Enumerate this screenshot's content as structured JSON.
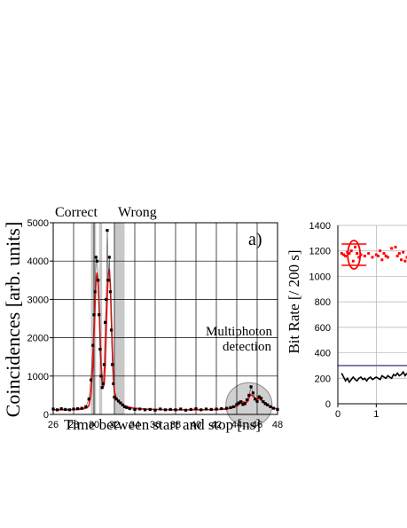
{
  "chart_data": [
    {
      "type": "line",
      "panel_label": "a)",
      "xlabel": "Time between start and stop [ns]",
      "ylabel": "Coincidences [arb. units]",
      "xlim": [
        26,
        48
      ],
      "ylim": [
        0,
        5000
      ],
      "x_ticks": [
        "26",
        "28",
        "30",
        "32",
        "34",
        "36",
        "38",
        "40",
        "42",
        "44",
        "46",
        "48"
      ],
      "y_ticks": [
        "0",
        "1000",
        "2000",
        "3000",
        "4000",
        "5000"
      ],
      "grid": true,
      "annotations": {
        "correct": "Correct",
        "wrong": "Wrong",
        "multiphoton_line1": "Multiphoton",
        "multiphoton_line2": "detection"
      },
      "shaded_regions": [
        [
          29.7,
          30.2
        ],
        [
          30.5,
          30.8
        ],
        [
          32.0,
          33.0
        ]
      ],
      "highlight_ellipse_center": [
        45.2,
        250
      ],
      "colors": {
        "points": "#000000",
        "fit": "#ff0000",
        "shade": "#c8c8c8",
        "ellipse": "#d0d0d0"
      },
      "series": [
        {
          "kind": "points",
          "x": [
            26.0,
            26.4,
            26.8,
            27.2,
            27.6,
            28.0,
            28.4,
            28.8,
            29.2,
            29.5,
            29.7,
            29.9,
            30.0,
            30.1,
            30.2,
            30.3,
            30.4,
            30.5,
            30.6,
            30.7,
            30.8,
            30.9,
            31.0,
            31.1,
            31.2,
            31.3,
            31.4,
            31.5,
            31.6,
            31.7,
            31.8,
            31.9,
            32.0,
            32.2,
            32.4,
            32.6,
            32.8,
            33.0,
            33.2,
            33.5,
            34.0,
            34.5,
            35.0,
            35.5,
            36.0,
            36.5,
            37.0,
            37.5,
            38.0,
            38.5,
            39.0,
            39.5,
            40.0,
            40.5,
            41.0,
            41.5,
            42.0,
            42.5,
            43.0,
            43.4,
            43.7,
            44.0,
            44.2,
            44.4,
            44.6,
            44.8,
            45.0,
            45.2,
            45.4,
            45.6,
            45.8,
            46.0,
            46.2,
            46.4,
            46.6,
            46.8,
            47.0,
            47.3,
            47.6,
            48.0
          ],
          "y": [
            140,
            120,
            150,
            130,
            120,
            140,
            150,
            160,
            200,
            400,
            900,
            1800,
            2600,
            3200,
            4100,
            4000,
            3500,
            2600,
            1700,
            1000,
            700,
            800,
            1300,
            2400,
            3000,
            4800,
            3500,
            4100,
            3200,
            2200,
            1300,
            800,
            450,
            400,
            350,
            300,
            250,
            200,
            180,
            150,
            130,
            140,
            120,
            130,
            110,
            140,
            120,
            130,
            120,
            140,
            110,
            130,
            150,
            120,
            140,
            130,
            140,
            150,
            160,
            180,
            200,
            260,
            300,
            330,
            260,
            280,
            380,
            500,
            720,
            560,
            400,
            340,
            460,
            420,
            330,
            280,
            250,
            200,
            160,
            130
          ]
        },
        {
          "kind": "fit",
          "x": [
            26.0,
            27.0,
            28.0,
            28.5,
            29.0,
            29.3,
            29.5,
            29.7,
            29.9,
            30.0,
            30.1,
            30.2,
            30.3,
            30.4,
            30.5,
            30.6,
            30.7,
            30.8,
            30.9,
            31.0,
            31.1,
            31.2,
            31.3,
            31.4,
            31.5,
            31.6,
            31.7,
            31.8,
            31.9,
            32.0,
            32.2,
            32.4,
            32.6,
            32.8,
            33.0,
            33.4,
            34.0,
            35.0,
            36.0,
            38.0,
            40.0,
            42.0,
            43.0,
            43.5,
            44.0,
            44.3,
            44.6,
            44.9,
            45.1,
            45.3,
            45.6,
            45.9,
            46.2,
            46.5,
            46.8,
            47.2,
            47.6,
            48.0
          ],
          "y": [
            120,
            120,
            125,
            130,
            145,
            170,
            230,
            520,
            1300,
            2100,
            2900,
            3500,
            3700,
            3450,
            2800,
            2000,
            1300,
            900,
            700,
            800,
            1300,
            2200,
            3100,
            3700,
            3800,
            3400,
            2600,
            1700,
            1000,
            600,
            400,
            330,
            290,
            260,
            230,
            190,
            160,
            140,
            130,
            120,
            120,
            125,
            140,
            170,
            220,
            280,
            330,
            300,
            350,
            520,
            480,
            400,
            420,
            340,
            300,
            230,
            170,
            140
          ]
        }
      ]
    },
    {
      "type": "scatter",
      "ylabel": "Bit Rate [/ 200 s]",
      "xlim": [
        0,
        1.8
      ],
      "ylim": [
        0,
        1400
      ],
      "x_ticks": [
        "0",
        "1"
      ],
      "y_ticks": [
        "0",
        "200",
        "400",
        "600",
        "800",
        "1000",
        "1200",
        "1400"
      ],
      "grid": true,
      "colors": {
        "points": "#ff0000",
        "line": "#000000",
        "reference": "#6060a0"
      },
      "reference_level": 300,
      "highlight_ellipse_center": [
        0.42,
        1170
      ],
      "series": [
        {
          "kind": "points",
          "x": [
            0.1,
            0.15,
            0.2,
            0.25,
            0.3,
            0.35,
            0.4,
            0.45,
            0.5,
            0.55,
            0.6,
            0.7,
            0.8,
            0.9,
            1.0,
            1.05,
            1.1,
            1.15,
            1.2,
            1.25,
            1.3,
            1.4,
            1.5,
            1.55,
            1.6,
            1.65,
            1.7,
            1.75,
            1.8
          ],
          "y": [
            1180,
            1170,
            1160,
            1190,
            1180,
            1200,
            1120,
            1230,
            1180,
            1150,
            1170,
            1160,
            1180,
            1150,
            1170,
            1160,
            1200,
            1130,
            1180,
            1160,
            1150,
            1220,
            1230,
            1160,
            1180,
            1130,
            1190,
            1120,
            1150
          ]
        },
        {
          "kind": "line",
          "x": [
            0.1,
            0.15,
            0.2,
            0.25,
            0.3,
            0.35,
            0.4,
            0.45,
            0.5,
            0.55,
            0.6,
            0.65,
            0.7,
            0.75,
            0.8,
            0.85,
            0.9,
            0.95,
            1.0,
            1.05,
            1.1,
            1.15,
            1.2,
            1.25,
            1.3,
            1.35,
            1.4,
            1.45,
            1.5,
            1.55,
            1.6,
            1.65,
            1.7,
            1.75,
            1.8
          ],
          "y": [
            240,
            210,
            180,
            200,
            170,
            190,
            210,
            190,
            180,
            200,
            210,
            190,
            200,
            180,
            200,
            210,
            190,
            200,
            210,
            200,
            190,
            220,
            210,
            200,
            220,
            210,
            200,
            230,
            220,
            240,
            220,
            230,
            250,
            220,
            240
          ]
        }
      ]
    }
  ]
}
